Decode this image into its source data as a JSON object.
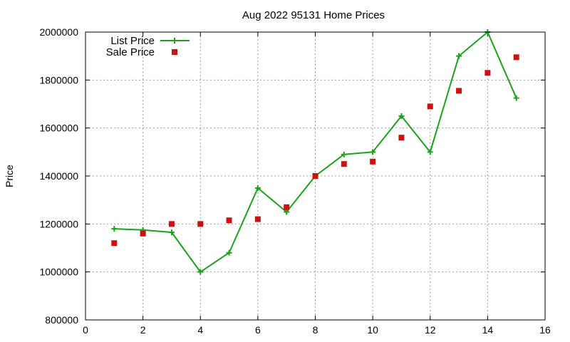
{
  "chart_data": {
    "type": "line",
    "title": "Aug 2022 95131 Home Prices",
    "xlabel": "",
    "ylabel": "Price",
    "xlim": [
      0,
      16
    ],
    "ylim": [
      800000,
      2000000
    ],
    "xticks": [
      0,
      2,
      4,
      6,
      8,
      10,
      12,
      14,
      16
    ],
    "yticks": [
      800000,
      1000000,
      1200000,
      1400000,
      1600000,
      1800000,
      2000000
    ],
    "grid": true,
    "legend_position": "top-left",
    "series": [
      {
        "name": "List Price",
        "style": "line-plus",
        "color": "#1aa31a",
        "x": [
          1,
          2,
          3,
          4,
          5,
          6,
          7,
          8,
          9,
          10,
          11,
          12,
          13,
          14,
          15
        ],
        "y": [
          1180000,
          1175000,
          1165000,
          1000000,
          1080000,
          1350000,
          1250000,
          1400000,
          1490000,
          1500000,
          1650000,
          1500000,
          1900000,
          2000000,
          1725000
        ]
      },
      {
        "name": "Sale Price",
        "style": "square",
        "color": "#cc1111",
        "x": [
          1,
          2,
          3,
          4,
          5,
          6,
          7,
          8,
          9,
          10,
          11,
          12,
          13,
          14,
          15
        ],
        "y": [
          1120000,
          1160000,
          1200000,
          1200000,
          1215000,
          1220000,
          1270000,
          1400000,
          1450000,
          1460000,
          1560000,
          1690000,
          1755000,
          1830000,
          1895000
        ]
      }
    ]
  }
}
